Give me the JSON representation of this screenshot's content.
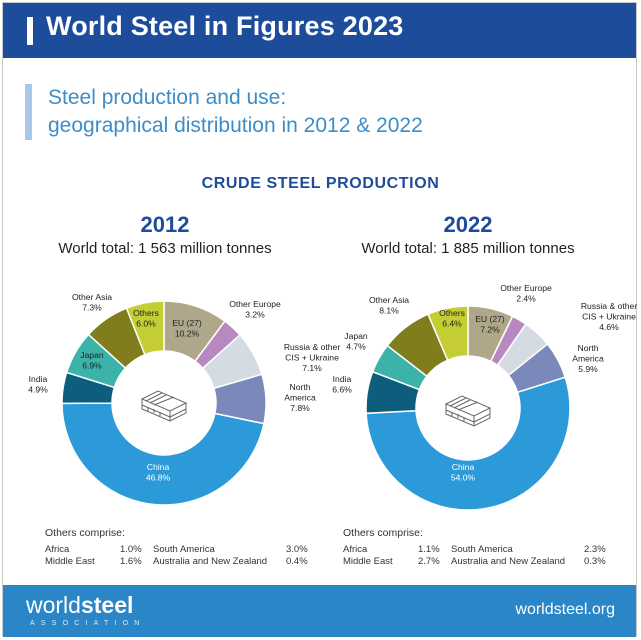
{
  "header": {
    "title": "World Steel in Figures 2023"
  },
  "subtitle": {
    "line1": "Steel production and use:",
    "line2": "geographical distribution in 2012 & 2022"
  },
  "section_title": "CRUDE STEEL PRODUCTION",
  "colors": {
    "header_bg": "#1d4c9a",
    "footer_bg": "#2b86c8",
    "China": "#2c9ad8",
    "India": "#0f5d7d",
    "Japan": "#3bb3a8",
    "Other Asia": "#7f7d1c",
    "Others": "#c4cd33",
    "EU (27)": "#aea78a",
    "Other Europe": "#b889c1",
    "Russia & other CIS + Ukraine": "#d4dbe2",
    "North America": "#7a89ba"
  },
  "chart_data": [
    {
      "type": "pie",
      "variant": "donut",
      "title": "2012",
      "subtitle": "World total: 1 563 million tonnes",
      "unit": "%",
      "segments": [
        {
          "name": "EU (27)",
          "label": [
            "EU (27)"
          ],
          "value": 10.2,
          "value_label": "10.2%"
        },
        {
          "name": "Other Europe",
          "label": [
            "Other Europe"
          ],
          "value": 3.2,
          "value_label": "3.2%"
        },
        {
          "name": "Russia & other CIS + Ukraine",
          "label": [
            "Russia & other",
            "CIS + Ukraine"
          ],
          "value": 7.1,
          "value_label": "7.1%"
        },
        {
          "name": "North America",
          "label": [
            "North",
            "America"
          ],
          "value": 7.8,
          "value_label": "7.8%"
        },
        {
          "name": "China",
          "label": [
            "China"
          ],
          "value": 46.8,
          "value_label": "46.8%"
        },
        {
          "name": "India",
          "label": [
            "India"
          ],
          "value": 4.9,
          "value_label": "4.9%"
        },
        {
          "name": "Japan",
          "label": [
            "Japan"
          ],
          "value": 6.9,
          "value_label": "6.9%"
        },
        {
          "name": "Other Asia",
          "label": [
            "Other Asia"
          ],
          "value": 7.3,
          "value_label": "7.3%"
        },
        {
          "name": "Others",
          "label": [
            "Others"
          ],
          "value": 6.0,
          "value_label": "6.0%"
        }
      ],
      "others_comprise": {
        "title": "Others comprise:",
        "items": [
          {
            "name": "Africa",
            "value": "1.0%"
          },
          {
            "name": "Middle East",
            "value": "1.6%"
          },
          {
            "name": "South America",
            "value": "3.0%"
          },
          {
            "name": "Australia and New Zealand",
            "value": "0.4%"
          }
        ]
      }
    },
    {
      "type": "pie",
      "variant": "donut",
      "title": "2022",
      "subtitle": "World total: 1 885 million tonnes",
      "unit": "%",
      "segments": [
        {
          "name": "EU (27)",
          "label": [
            "EU (27)"
          ],
          "value": 7.2,
          "value_label": "7.2%"
        },
        {
          "name": "Other Europe",
          "label": [
            "Other Europe"
          ],
          "value": 2.4,
          "value_label": "2.4%"
        },
        {
          "name": "Russia & other CIS + Ukraine",
          "label": [
            "Russia & other",
            "CIS + Ukraine"
          ],
          "value": 4.6,
          "value_label": "4.6%"
        },
        {
          "name": "North America",
          "label": [
            "North",
            "America"
          ],
          "value": 5.9,
          "value_label": "5.9%"
        },
        {
          "name": "China",
          "label": [
            "China"
          ],
          "value": 54.0,
          "value_label": "54.0%"
        },
        {
          "name": "India",
          "label": [
            "India"
          ],
          "value": 6.6,
          "value_label": "6.6%"
        },
        {
          "name": "Japan",
          "label": [
            "Japan"
          ],
          "value": 4.7,
          "value_label": "4.7%"
        },
        {
          "name": "Other Asia",
          "label": [
            "Other Asia"
          ],
          "value": 8.1,
          "value_label": "8.1%"
        },
        {
          "name": "Others",
          "label": [
            "Others"
          ],
          "value": 6.4,
          "value_label": "6.4%"
        }
      ],
      "others_comprise": {
        "title": "Others comprise:",
        "items": [
          {
            "name": "Africa",
            "value": "1.1%"
          },
          {
            "name": "Middle East",
            "value": "2.7%"
          },
          {
            "name": "South America",
            "value": "2.3%"
          },
          {
            "name": "Australia and New Zealand",
            "value": "0.3%"
          }
        ]
      }
    }
  ],
  "footer": {
    "logo_light": "world",
    "logo_bold": "steel",
    "tagline": "ASSOCIATION",
    "url": "worldsteel.org"
  }
}
